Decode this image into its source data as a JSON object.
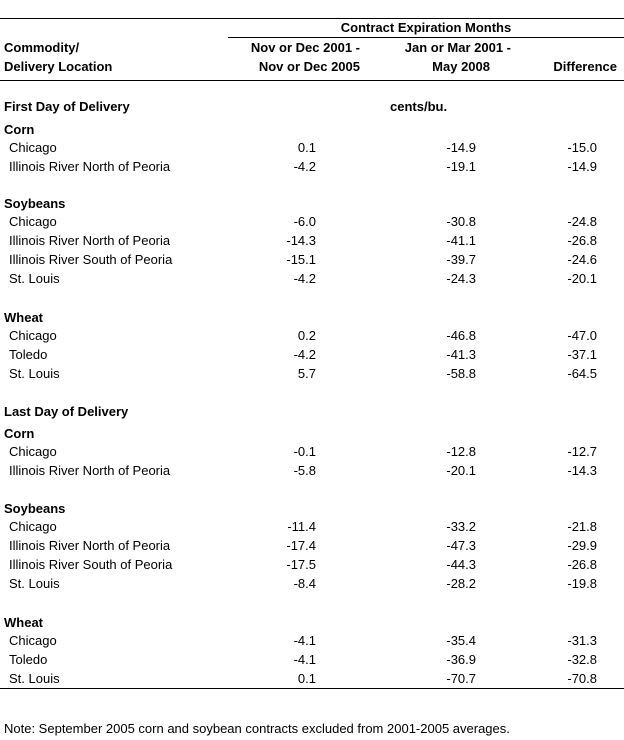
{
  "header": {
    "group_title": "Contract Expiration Months",
    "col1_line1": "Commodity/",
    "col1_line2": "Delivery Location",
    "col2_line1": "Nov or Dec 2001 -",
    "col2_line2": "Nov or Dec 2005",
    "col3_line1": "Jan or Mar 2001 -",
    "col3_line2": "May 2008",
    "col4": "Difference"
  },
  "units": "cents/bu.",
  "sections": [
    {
      "title": "First Day of Delivery",
      "groups": [
        {
          "commodity": "Corn",
          "rows": [
            {
              "location": "Chicago",
              "a": "0.1",
              "b": "-14.9",
              "diff": "-15.0"
            },
            {
              "location": "Illinois River North of Peoria",
              "a": "-4.2",
              "b": "-19.1",
              "diff": "-14.9"
            }
          ]
        },
        {
          "commodity": "Soybeans",
          "rows": [
            {
              "location": "Chicago",
              "a": "-6.0",
              "b": "-30.8",
              "diff": "-24.8"
            },
            {
              "location": "Illinois River North of Peoria",
              "a": "-14.3",
              "b": "-41.1",
              "diff": "-26.8"
            },
            {
              "location": "Illinois River South of Peoria",
              "a": "-15.1",
              "b": "-39.7",
              "diff": "-24.6"
            },
            {
              "location": "St. Louis",
              "a": "-4.2",
              "b": "-24.3",
              "diff": "-20.1"
            }
          ]
        },
        {
          "commodity": "Wheat",
          "rows": [
            {
              "location": "Chicago",
              "a": "0.2",
              "b": "-46.8",
              "diff": "-47.0"
            },
            {
              "location": "Toledo",
              "a": "-4.2",
              "b": "-41.3",
              "diff": "-37.1"
            },
            {
              "location": "St. Louis",
              "a": "5.7",
              "b": "-58.8",
              "diff": "-64.5"
            }
          ]
        }
      ]
    },
    {
      "title": "Last Day of Delivery",
      "groups": [
        {
          "commodity": "Corn",
          "rows": [
            {
              "location": "Chicago",
              "a": "-0.1",
              "b": "-12.8",
              "diff": "-12.7"
            },
            {
              "location": "Illinois River North of Peoria",
              "a": "-5.8",
              "b": "-20.1",
              "diff": "-14.3"
            }
          ]
        },
        {
          "commodity": "Soybeans",
          "rows": [
            {
              "location": "Chicago",
              "a": "-11.4",
              "b": "-33.2",
              "diff": "-21.8"
            },
            {
              "location": "Illinois River North of Peoria",
              "a": "-17.4",
              "b": "-47.3",
              "diff": "-29.9"
            },
            {
              "location": "Illinois River South of Peoria",
              "a": "-17.5",
              "b": "-44.3",
              "diff": "-26.8"
            },
            {
              "location": "St. Louis",
              "a": "-8.4",
              "b": "-28.2",
              "diff": "-19.8"
            }
          ]
        },
        {
          "commodity": "Wheat",
          "rows": [
            {
              "location": "Chicago",
              "a": "-4.1",
              "b": "-35.4",
              "diff": "-31.3"
            },
            {
              "location": "Toledo",
              "a": "-4.1",
              "b": "-36.9",
              "diff": "-32.8"
            },
            {
              "location": "St. Louis",
              "a": "0.1",
              "b": "-70.7",
              "diff": "-70.8"
            }
          ]
        }
      ]
    }
  ],
  "note": "Note: September 2005 corn and soybean contracts excluded from 2001-2005 averages."
}
